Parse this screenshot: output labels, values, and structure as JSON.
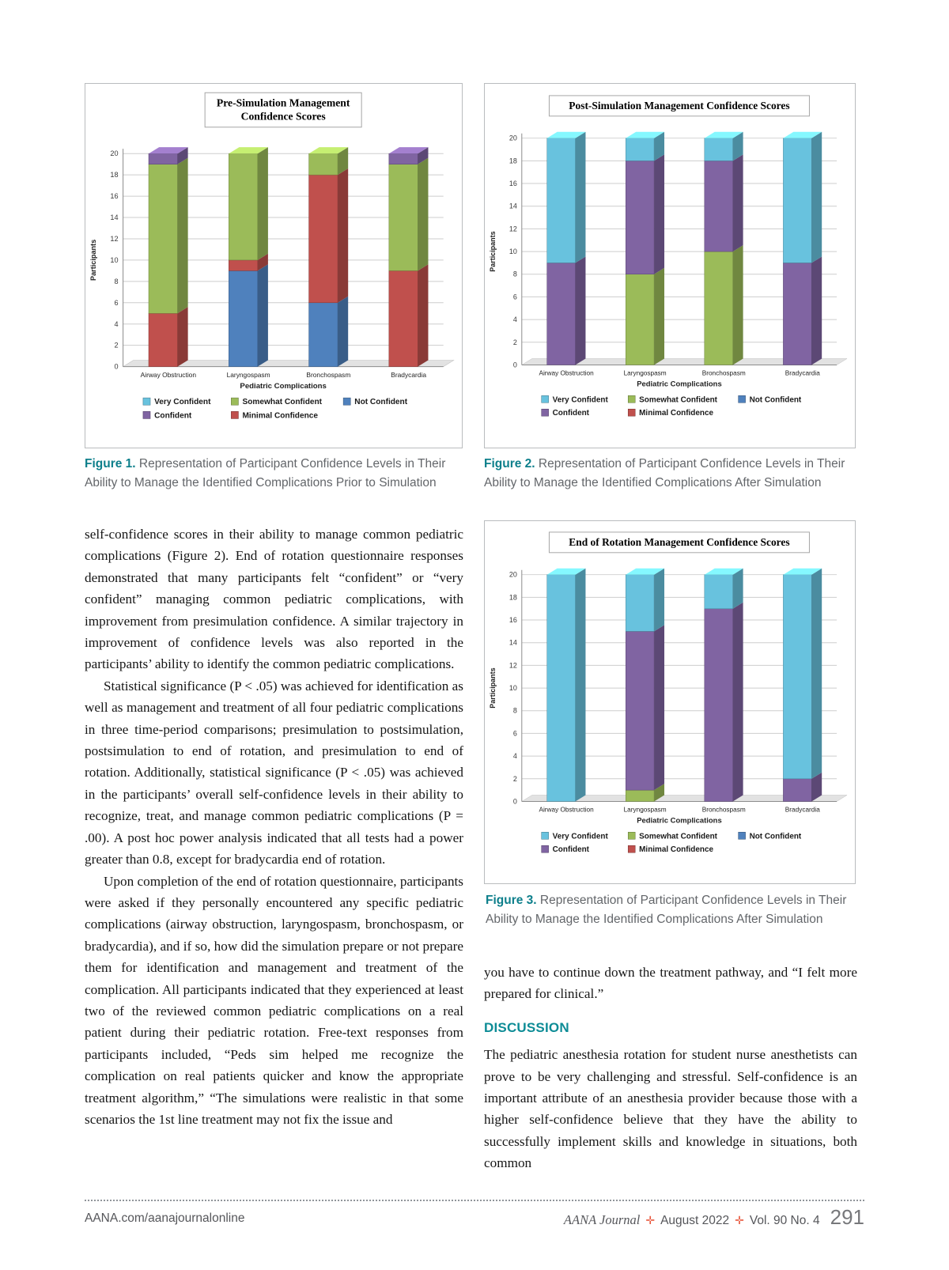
{
  "figures": [
    {
      "caption_label": "Figure 1.",
      "caption_text": "Representation of Participant Confidence Levels in Their Ability to Manage the Identified Complications Prior to Simulation"
    },
    {
      "caption_label": "Figure 2.",
      "caption_text": "Representation of Participant Confidence Levels in Their Ability to Manage the Identified Complications After Simulation"
    },
    {
      "caption_label": "Figure 3.",
      "caption_text": "Representation of Participant Confidence Levels in Their Ability to Manage the Identified Complications After Simulation"
    }
  ],
  "body": {
    "left_paragraphs": [
      "self-confidence scores in their ability to manage common pediatric complications (Figure 2). End of rotation questionnaire responses demonstrated that many participants felt “confident” or “very confident” managing common pediatric complications, with improvement from presimulation confidence. A similar trajectory in improvement of confidence levels was also reported in the participants’ ability to identify the common pediatric complications.",
      "Statistical significance (P < .05) was achieved for identification as well as management and treatment of all four pediatric complications in three time-period comparisons; presimulation to postsimulation, postsimulation to end of rotation, and presimulation to end of rotation. Additionally, statistical significance (P < .05) was achieved in the participants’ overall self-confidence levels in their ability to recognize, treat, and manage common pediatric complications (P = .00). A post hoc power analysis indicated that all tests had a power greater than 0.8, except for bradycardia end of rotation.",
      "Upon completion of the end of rotation questionnaire, participants were asked if they personally encountered any specific pediatric complications (airway obstruction, laryngospasm, bronchospasm, or bradycardia), and if so, how did the simulation prepare or not prepare them for identification and management and treatment of the complication. All participants indicated that they experienced at least two of the reviewed common pediatric complications on a real patient during their pediatric rotation. Free-text responses from participants included, “Peds sim helped me recognize the complication on real patients quicker and know the appropriate treatment algorithm,” “The simulations were realistic in that some scenarios the 1st line treatment may not fix the issue and"
    ],
    "right_paragraph": "you have to continue down the treatment pathway, and “I felt more prepared for clinical.”",
    "discussion_heading": "DISCUSSION",
    "discussion_paragraph": "The pediatric anesthesia rotation for student nurse anesthetists can prove to be very challenging and stressful. Self-confidence is an important attribute of an anesthesia provider because those with a higher self-confidence believe that they have the ability to successfully implement skills and knowledge in situations, both common"
  },
  "footer": {
    "left": "AANA.com/aanajournalonline",
    "journal": "AANA Journal",
    "separator": "✛",
    "date": "August 2022",
    "volume": "Vol. 90  No. 4",
    "page_number": "291"
  },
  "colors": {
    "accent_teal": "#0d8c96",
    "caption_label_teal": "#0d7f8b",
    "footer_cross_orange": "#e8563c",
    "very_confident": "#68C2DE",
    "confident": "#8064A2",
    "somewhat_confident": "#9BBB59",
    "minimal_confidence": "#C0504D",
    "not_confident": "#4F81BD"
  },
  "chart_data": [
    {
      "type": "bar",
      "stacked": true,
      "title": "Pre-Simulation Management Confidence Scores",
      "title_lines": [
        "Pre-Simulation Management",
        "Confidence Scores"
      ],
      "categories": [
        "Airway Obstruction",
        "Laryngospasm",
        "Bronchospasm",
        "Bradycardia"
      ],
      "xlabel": "Pediatric Complications",
      "ylabel": "Participants",
      "ylim": [
        0,
        20
      ],
      "ytick_step": 2,
      "grid": true,
      "legend_position": "bottom",
      "series": [
        {
          "name": "Not Confident",
          "color": "#4F81BD",
          "values": [
            0,
            9,
            6,
            0
          ]
        },
        {
          "name": "Minimal Confidence",
          "color": "#C0504D",
          "values": [
            5,
            1,
            12,
            9
          ]
        },
        {
          "name": "Somewhat Confident",
          "color": "#9BBB59",
          "values": [
            14,
            10,
            2,
            10
          ]
        },
        {
          "name": "Confident",
          "color": "#8064A2",
          "values": [
            1,
            0,
            0,
            1
          ]
        },
        {
          "name": "Very Confident",
          "color": "#68C2DE",
          "values": [
            0,
            0,
            0,
            0
          ]
        }
      ],
      "legend": [
        {
          "name": "Very Confident",
          "color": "#68C2DE"
        },
        {
          "name": "Somewhat Confident",
          "color": "#9BBB59"
        },
        {
          "name": "Not Confident",
          "color": "#4F81BD"
        },
        {
          "name": "Confident",
          "color": "#8064A2"
        },
        {
          "name": "Minimal Confidence",
          "color": "#C0504D"
        }
      ]
    },
    {
      "type": "bar",
      "stacked": true,
      "title": "Post-Simulation Management Confidence Scores",
      "title_lines": [
        "Post-Simulation Management Confidence Scores"
      ],
      "categories": [
        "Airway Obstruction",
        "Laryngospasm",
        "Bronchospasm",
        "Bradycardia"
      ],
      "xlabel": "Pediatric Complications",
      "ylabel": "Participants",
      "ylim": [
        0,
        20
      ],
      "ytick_step": 2,
      "grid": true,
      "legend_position": "bottom",
      "series": [
        {
          "name": "Not Confident",
          "color": "#4F81BD",
          "values": [
            0,
            0,
            0,
            0
          ]
        },
        {
          "name": "Minimal Confidence",
          "color": "#C0504D",
          "values": [
            0,
            0,
            0,
            0
          ]
        },
        {
          "name": "Somewhat Confident",
          "color": "#9BBB59",
          "values": [
            0,
            8,
            10,
            0
          ]
        },
        {
          "name": "Confident",
          "color": "#8064A2",
          "values": [
            9,
            10,
            8,
            9
          ]
        },
        {
          "name": "Very Confident",
          "color": "#68C2DE",
          "values": [
            11,
            2,
            2,
            11
          ]
        }
      ],
      "legend": [
        {
          "name": "Very Confident",
          "color": "#68C2DE"
        },
        {
          "name": "Somewhat Confident",
          "color": "#9BBB59"
        },
        {
          "name": "Not Confident",
          "color": "#4F81BD"
        },
        {
          "name": "Confident",
          "color": "#8064A2"
        },
        {
          "name": "Minimal Confidence",
          "color": "#C0504D"
        }
      ]
    },
    {
      "type": "bar",
      "stacked": true,
      "title": "End of Rotation Management Confidence Scores",
      "title_lines": [
        "End of Rotation Management Confidence Scores"
      ],
      "categories": [
        "Airway Obstruction",
        "Laryngospasm",
        "Bronchospasm",
        "Bradycardia"
      ],
      "xlabel": "Pediatric Complications",
      "ylabel": "Participants",
      "ylim": [
        0,
        20
      ],
      "ytick_step": 2,
      "grid": true,
      "legend_position": "bottom",
      "series": [
        {
          "name": "Not Confident",
          "color": "#4F81BD",
          "values": [
            0,
            0,
            0,
            0
          ]
        },
        {
          "name": "Minimal Confidence",
          "color": "#C0504D",
          "values": [
            0,
            0,
            0,
            0
          ]
        },
        {
          "name": "Somewhat Confident",
          "color": "#9BBB59",
          "values": [
            0,
            1,
            0,
            0
          ]
        },
        {
          "name": "Confident",
          "color": "#8064A2",
          "values": [
            0,
            14,
            17,
            2
          ]
        },
        {
          "name": "Very Confident",
          "color": "#68C2DE",
          "values": [
            20,
            5,
            3,
            18
          ]
        }
      ],
      "legend": [
        {
          "name": "Very Confident",
          "color": "#68C2DE"
        },
        {
          "name": "Somewhat Confident",
          "color": "#9BBB59"
        },
        {
          "name": "Not Confident",
          "color": "#4F81BD"
        },
        {
          "name": "Confident",
          "color": "#8064A2"
        },
        {
          "name": "Minimal Confidence",
          "color": "#C0504D"
        }
      ]
    }
  ]
}
